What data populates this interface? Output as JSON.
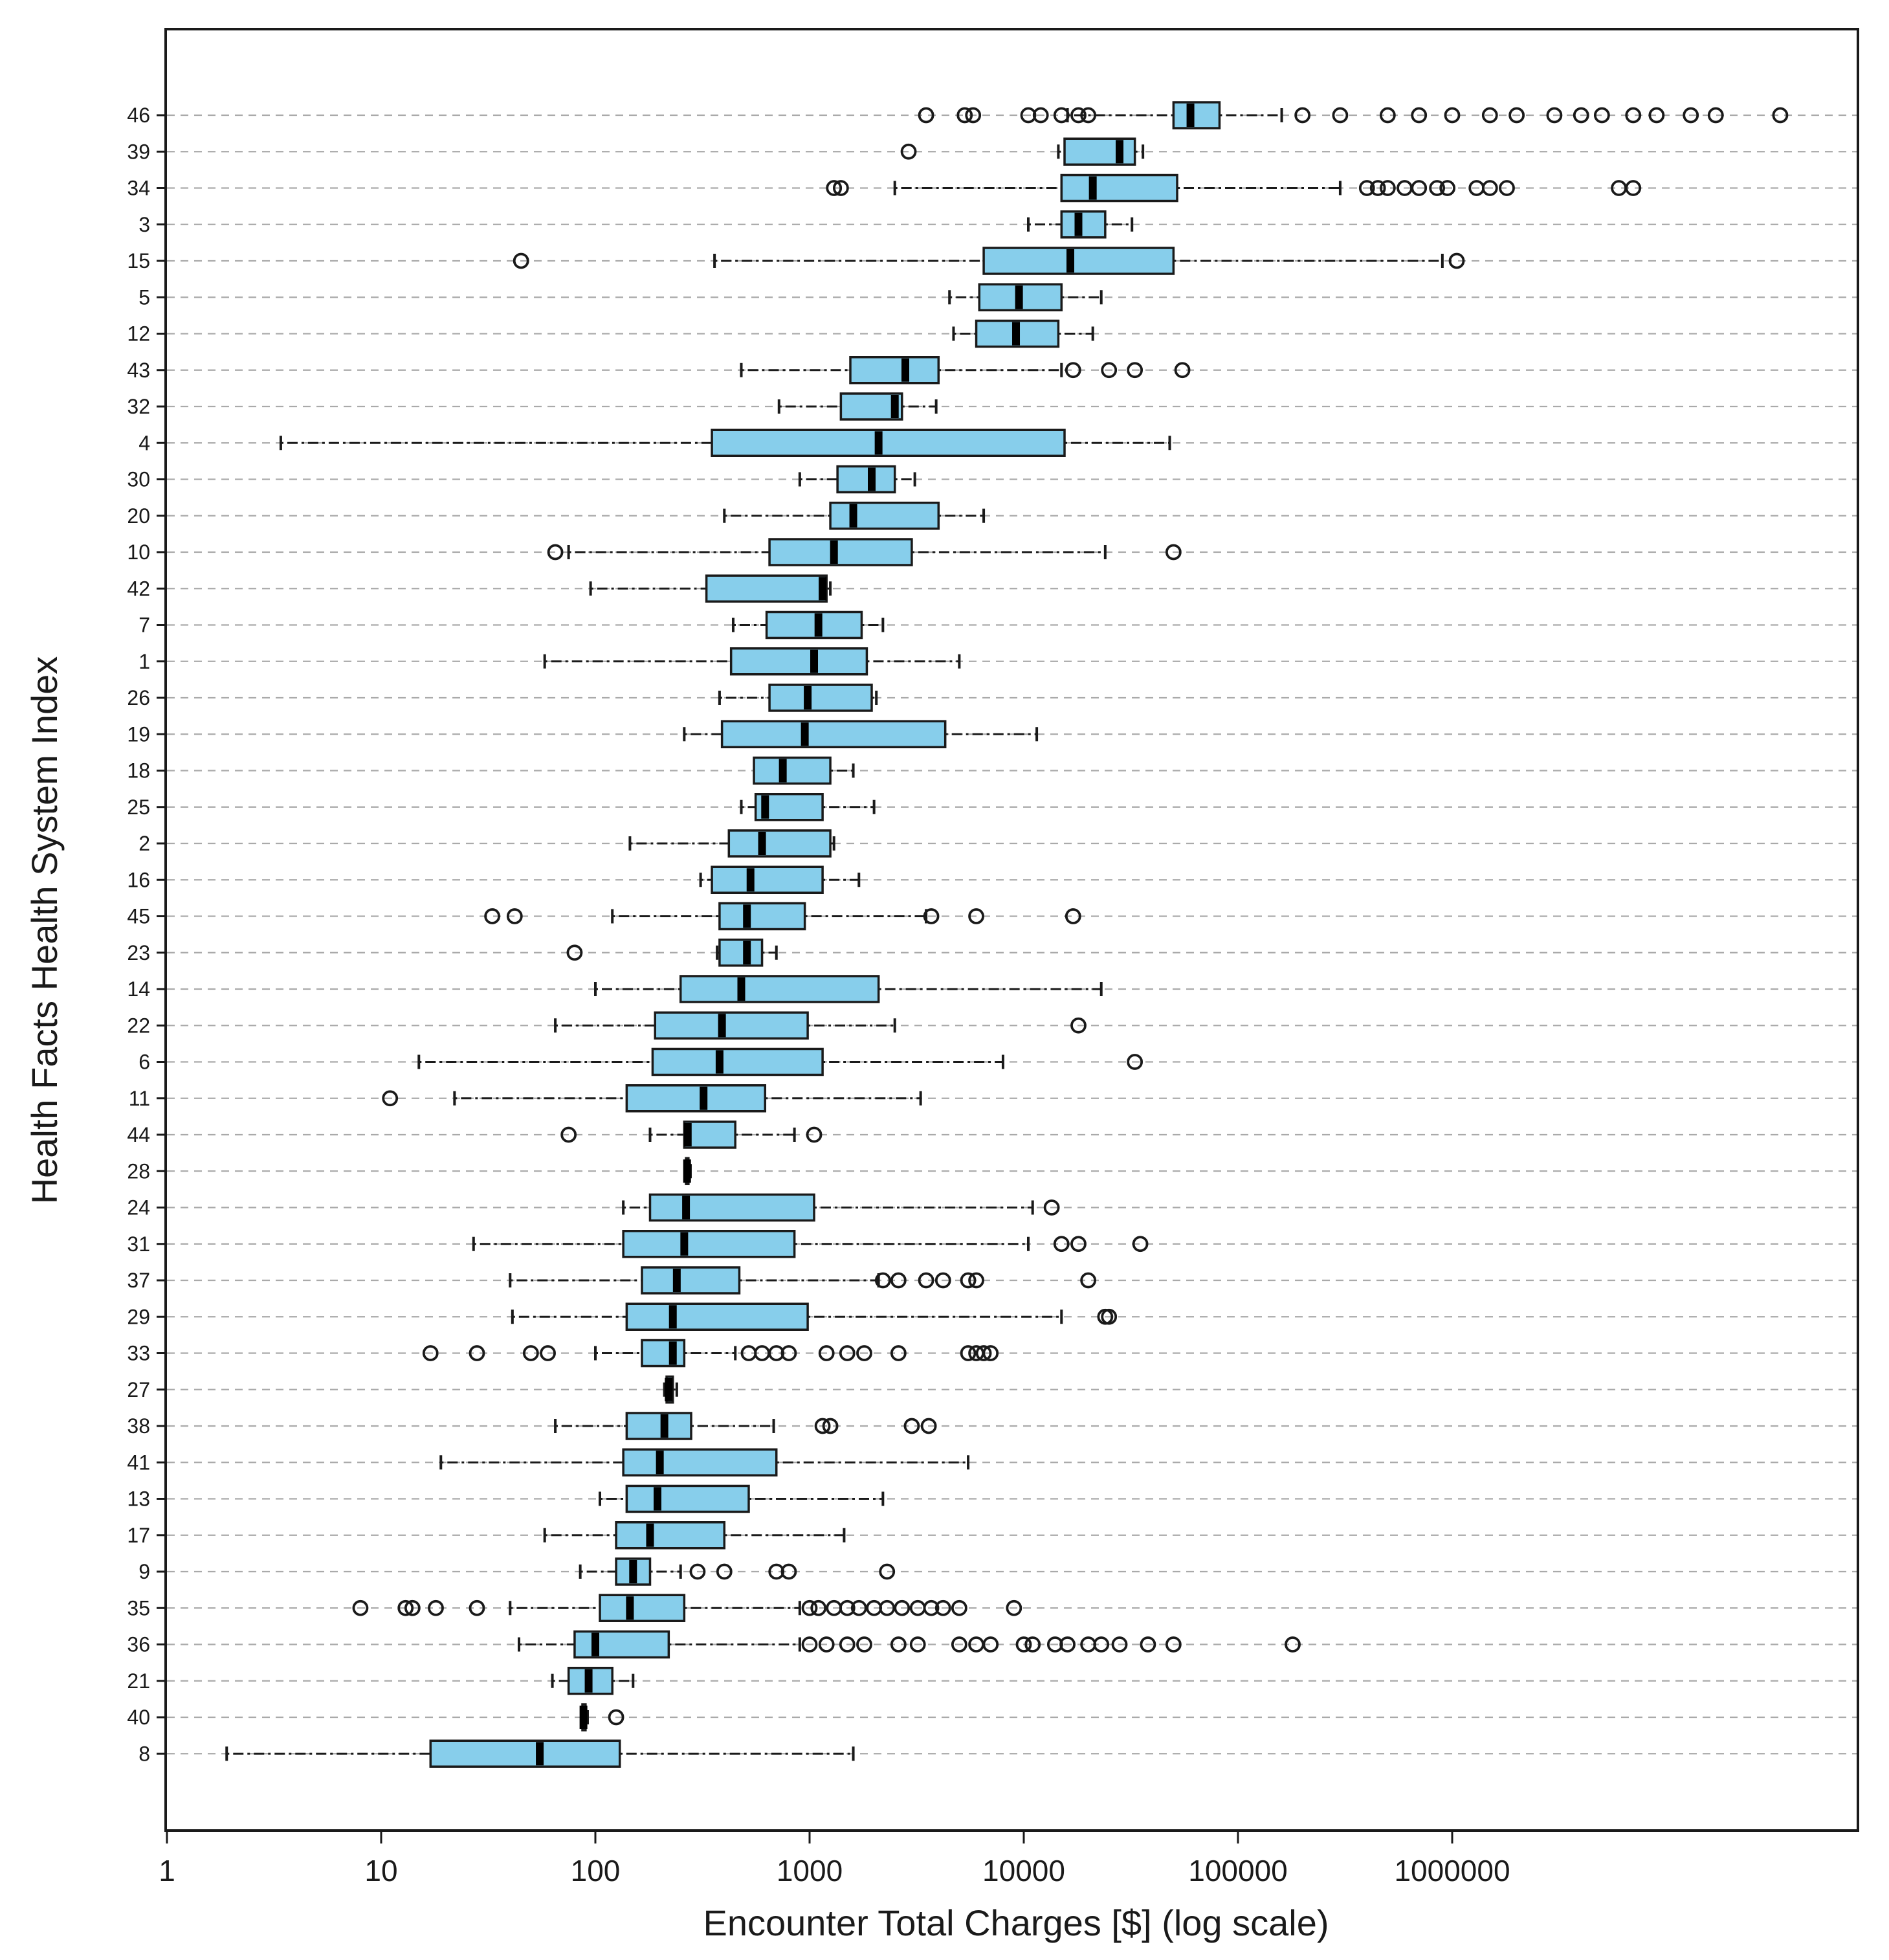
{
  "chart_data": {
    "type": "boxplot",
    "title": "",
    "xlabel": "Encounter Total Charges [$] (log scale)",
    "ylabel": "Health Facts Health System Index",
    "xscale": "log10",
    "xlim": [
      1,
      100000000
    ],
    "x_ticks": [
      1,
      10,
      100,
      1000,
      10000,
      100000,
      1000000
    ],
    "x_tick_labels": [
      "1",
      "10",
      "100",
      "1000",
      "10000",
      "100000",
      "1000000"
    ],
    "box_fill": "#87CEEB",
    "box_stroke": "#1a1a1a",
    "grid_color": "#aaaaaa",
    "boxes": [
      {
        "label": "46",
        "wl": 16000,
        "q1": 50000,
        "med": 60000,
        "q3": 82000,
        "wh": 160000,
        "outliers": [
          3500,
          5300,
          5800,
          10500,
          12000,
          15000,
          18000,
          20000,
          200000,
          300000,
          500000,
          700000,
          1000000,
          1500000,
          2000000,
          3000000,
          4000000,
          5000000,
          7000000,
          9000000,
          13000000,
          17000000,
          34000000
        ]
      },
      {
        "label": "39",
        "wl": 14500,
        "q1": 15500,
        "med": 28000,
        "q3": 33000,
        "wh": 36000,
        "outliers": [
          2900
        ]
      },
      {
        "label": "34",
        "wl": 2500,
        "q1": 15000,
        "med": 21000,
        "q3": 52000,
        "wh": 300000,
        "outliers": [
          1300,
          1400,
          400000,
          450000,
          500000,
          600000,
          700000,
          850000,
          950000,
          1300000,
          1500000,
          1800000,
          6000000,
          7000000
        ]
      },
      {
        "label": "3",
        "wl": 10500,
        "q1": 15000,
        "med": 18000,
        "q3": 24000,
        "wh": 32000,
        "outliers": []
      },
      {
        "label": "15",
        "wl": 360,
        "q1": 6500,
        "med": 16500,
        "q3": 50000,
        "wh": 900000,
        "outliers": [
          45,
          1050000
        ]
      },
      {
        "label": "5",
        "wl": 4500,
        "q1": 6200,
        "med": 9500,
        "q3": 15000,
        "wh": 23000,
        "outliers": []
      },
      {
        "label": "12",
        "wl": 4700,
        "q1": 6000,
        "med": 9200,
        "q3": 14500,
        "wh": 21000,
        "outliers": []
      },
      {
        "label": "43",
        "wl": 480,
        "q1": 1550,
        "med": 2800,
        "q3": 4000,
        "wh": 15000,
        "outliers": [
          17000,
          25000,
          33000,
          55000
        ]
      },
      {
        "label": "32",
        "wl": 720,
        "q1": 1400,
        "med": 2500,
        "q3": 2700,
        "wh": 3900,
        "outliers": []
      },
      {
        "label": "4",
        "wl": 3.4,
        "q1": 350,
        "med": 2100,
        "q3": 15500,
        "wh": 48000,
        "outliers": []
      },
      {
        "label": "30",
        "wl": 900,
        "q1": 1350,
        "med": 1950,
        "q3": 2500,
        "wh": 3100,
        "outliers": []
      },
      {
        "label": "20",
        "wl": 400,
        "q1": 1250,
        "med": 1600,
        "q3": 4000,
        "wh": 6500,
        "outliers": []
      },
      {
        "label": "10",
        "wl": 75,
        "q1": 650,
        "med": 1300,
        "q3": 3000,
        "wh": 24000,
        "outliers": [
          65,
          50000
        ]
      },
      {
        "label": "42",
        "wl": 95,
        "q1": 330,
        "med": 1150,
        "q3": 1200,
        "wh": 1250,
        "outliers": []
      },
      {
        "label": "7",
        "wl": 440,
        "q1": 630,
        "med": 1100,
        "q3": 1750,
        "wh": 2200,
        "outliers": []
      },
      {
        "label": "1",
        "wl": 58,
        "q1": 430,
        "med": 1050,
        "q3": 1850,
        "wh": 5000,
        "outliers": []
      },
      {
        "label": "26",
        "wl": 380,
        "q1": 650,
        "med": 980,
        "q3": 1950,
        "wh": 2050,
        "outliers": []
      },
      {
        "label": "19",
        "wl": 260,
        "q1": 390,
        "med": 950,
        "q3": 4300,
        "wh": 11500,
        "outliers": []
      },
      {
        "label": "18",
        "wl": 600,
        "q1": 550,
        "med": 750,
        "q3": 1250,
        "wh": 1600,
        "outliers": []
      },
      {
        "label": "25",
        "wl": 480,
        "q1": 560,
        "med": 620,
        "q3": 1150,
        "wh": 2000,
        "outliers": []
      },
      {
        "label": "2",
        "wl": 145,
        "q1": 420,
        "med": 600,
        "q3": 1250,
        "wh": 1300,
        "outliers": []
      },
      {
        "label": "16",
        "wl": 310,
        "q1": 350,
        "med": 530,
        "q3": 1150,
        "wh": 1700,
        "outliers": []
      },
      {
        "label": "45",
        "wl": 120,
        "q1": 380,
        "med": 510,
        "q3": 950,
        "wh": 3500,
        "outliers": [
          33,
          42,
          3700,
          6000,
          17000
        ]
      },
      {
        "label": "23",
        "wl": 370,
        "q1": 380,
        "med": 510,
        "q3": 600,
        "wh": 700,
        "outliers": [
          80
        ]
      },
      {
        "label": "14",
        "wl": 100,
        "q1": 250,
        "med": 480,
        "q3": 2100,
        "wh": 23000,
        "outliers": []
      },
      {
        "label": "22",
        "wl": 65,
        "q1": 190,
        "med": 390,
        "q3": 980,
        "wh": 2500,
        "outliers": [
          18000
        ]
      },
      {
        "label": "6",
        "wl": 15,
        "q1": 185,
        "med": 380,
        "q3": 1150,
        "wh": 8000,
        "outliers": [
          33000
        ]
      },
      {
        "label": "11",
        "wl": 22,
        "q1": 140,
        "med": 320,
        "q3": 620,
        "wh": 3300,
        "outliers": [
          11
        ]
      },
      {
        "label": "44",
        "wl": 180,
        "q1": 260,
        "med": 270,
        "q3": 450,
        "wh": 850,
        "outliers": [
          75,
          1050
        ]
      },
      {
        "label": "28",
        "wl": 262,
        "q1": 265,
        "med": 268,
        "q3": 272,
        "wh": 278,
        "outliers": []
      },
      {
        "label": "24",
        "wl": 135,
        "q1": 180,
        "med": 265,
        "q3": 1050,
        "wh": 11000,
        "outliers": [
          13500
        ]
      },
      {
        "label": "31",
        "wl": 27,
        "q1": 135,
        "med": 260,
        "q3": 850,
        "wh": 10500,
        "outliers": [
          15000,
          18000,
          35000
        ]
      },
      {
        "label": "37",
        "wl": 40,
        "q1": 165,
        "med": 240,
        "q3": 470,
        "wh": 2100,
        "outliers": [
          2200,
          2600,
          3500,
          4200,
          5500,
          6000,
          20000
        ]
      },
      {
        "label": "29",
        "wl": 41,
        "q1": 140,
        "med": 230,
        "q3": 980,
        "wh": 15000,
        "outliers": [
          24000,
          25000
        ]
      },
      {
        "label": "33",
        "wl": 100,
        "q1": 165,
        "med": 230,
        "q3": 260,
        "wh": 450,
        "outliers": [
          17,
          28,
          50,
          60,
          520,
          600,
          700,
          800,
          1200,
          1500,
          1800,
          2600,
          5500,
          6000,
          6500,
          7000
        ]
      },
      {
        "label": "27",
        "wl": 210,
        "q1": 215,
        "med": 220,
        "q3": 230,
        "wh": 240,
        "outliers": []
      },
      {
        "label": "38",
        "wl": 65,
        "q1": 140,
        "med": 210,
        "q3": 280,
        "wh": 680,
        "outliers": [
          1150,
          1250,
          3000,
          3600
        ]
      },
      {
        "label": "41",
        "wl": 19,
        "q1": 135,
        "med": 200,
        "q3": 700,
        "wh": 5500,
        "outliers": []
      },
      {
        "label": "13",
        "wl": 105,
        "q1": 140,
        "med": 195,
        "q3": 520,
        "wh": 2200,
        "outliers": []
      },
      {
        "label": "17",
        "wl": 58,
        "q1": 125,
        "med": 180,
        "q3": 400,
        "wh": 1450,
        "outliers": []
      },
      {
        "label": "9",
        "wl": 85,
        "q1": 125,
        "med": 150,
        "q3": 180,
        "wh": 250,
        "outliers": [
          300,
          400,
          700,
          800,
          2300
        ]
      },
      {
        "label": "35",
        "wl": 40,
        "q1": 105,
        "med": 145,
        "q3": 260,
        "wh": 900,
        "outliers": [
          8,
          13,
          14,
          18,
          28,
          1000,
          1100,
          1300,
          1500,
          1700,
          2000,
          2300,
          2700,
          3200,
          3700,
          4200,
          5000,
          9000
        ]
      },
      {
        "label": "36",
        "wl": 44,
        "q1": 80,
        "med": 100,
        "q3": 220,
        "wh": 900,
        "outliers": [
          1000,
          1200,
          1500,
          1800,
          2600,
          3200,
          5000,
          6000,
          7000,
          10000,
          11000,
          14000,
          16000,
          20000,
          23000,
          28000,
          38000,
          50000,
          180000
        ]
      },
      {
        "label": "21",
        "wl": 63,
        "q1": 75,
        "med": 93,
        "q3": 120,
        "wh": 150,
        "outliers": []
      },
      {
        "label": "40",
        "wl": 86,
        "q1": 87,
        "med": 88,
        "q3": 90,
        "wh": 92,
        "outliers": [
          125
        ]
      },
      {
        "label": "8",
        "wl": 1.9,
        "q1": 17,
        "med": 55,
        "q3": 130,
        "wh": 1600,
        "outliers": []
      }
    ]
  }
}
